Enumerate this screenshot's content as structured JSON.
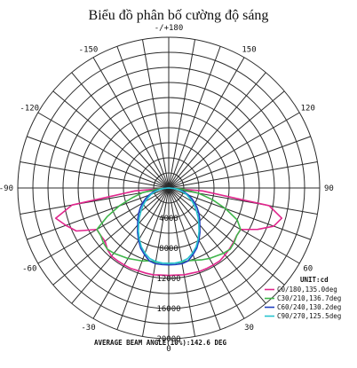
{
  "title": "Biểu đồ phân bố cường độ sáng",
  "chart_data": {
    "type": "polar",
    "title": "Biểu đồ phân bố cường độ sáng",
    "unit_label": "UNIT:cd",
    "radial_max": 20000,
    "radial_tick_labels": [
      {
        "label": "4000",
        "value": 4000
      },
      {
        "label": "8000",
        "value": 8000
      },
      {
        "label": "12000",
        "value": 12000
      },
      {
        "label": "16000",
        "value": 16000
      },
      {
        "label": "20000",
        "value": 20000
      }
    ],
    "angle_tick_labels": [
      {
        "label": "-/+180",
        "angle": 180
      },
      {
        "label": "-150",
        "angle": -150
      },
      {
        "label": "150",
        "angle": 150
      },
      {
        "label": "-120",
        "angle": -120
      },
      {
        "label": "120",
        "angle": 120
      },
      {
        "label": "-90",
        "angle": -90
      },
      {
        "label": "90",
        "angle": 90
      },
      {
        "label": "-60",
        "angle": -60
      },
      {
        "label": "60",
        "angle": 60
      },
      {
        "label": "-30",
        "angle": -30
      },
      {
        "label": "30",
        "angle": 30
      },
      {
        "label": "0",
        "angle": 0
      }
    ],
    "series": [
      {
        "name": "C0/180,135.0deg",
        "color": "#e0258c",
        "angles": [
          -90,
          -85,
          -80,
          -75,
          -70,
          -65,
          -60,
          -55,
          -50,
          -45,
          -40,
          -35,
          -30,
          -25,
          -20,
          -15,
          -10,
          -5,
          0,
          5,
          10,
          15,
          20,
          25,
          30,
          35,
          40,
          45,
          50,
          55,
          60,
          65,
          70,
          75,
          80,
          85,
          90
        ],
        "values": [
          0,
          4500,
          13000,
          15500,
          14500,
          13500,
          11000,
          11000,
          11000,
          11500,
          11800,
          11800,
          11800,
          11800,
          11700,
          11700,
          11700,
          11600,
          11600,
          11600,
          11700,
          11700,
          11800,
          11800,
          11800,
          11800,
          11600,
          11400,
          11200,
          11000,
          11000,
          13000,
          14800,
          15500,
          13500,
          4500,
          0
        ]
      },
      {
        "name": "C30/210,136.7deg",
        "color": "#3fb54a",
        "angles": [
          -90,
          -85,
          -80,
          -75,
          -70,
          -65,
          -60,
          -55,
          -50,
          -45,
          -40,
          -35,
          -30,
          -25,
          -20,
          -15,
          -10,
          -5,
          0,
          5,
          10,
          15,
          20,
          25,
          30,
          35,
          40,
          45,
          50,
          55,
          60,
          65,
          70,
          75,
          80,
          85,
          90
        ],
        "values": [
          0,
          1500,
          3500,
          5000,
          7000,
          9000,
          11000,
          11000,
          11300,
          11500,
          11300,
          11000,
          10800,
          10500,
          10300,
          10000,
          10000,
          10000,
          10000,
          10000,
          10000,
          10000,
          10200,
          10500,
          10800,
          11000,
          11300,
          11500,
          11300,
          11000,
          11000,
          10000,
          8000,
          6000,
          4000,
          1800,
          0
        ]
      },
      {
        "name": "C60/240,130.2deg",
        "color": "#1f3fbf",
        "angles": [
          -90,
          -85,
          -80,
          -75,
          -70,
          -65,
          -60,
          -55,
          -50,
          -45,
          -40,
          -35,
          -30,
          -25,
          -20,
          -15,
          -10,
          -5,
          0,
          5,
          10,
          15,
          20,
          25,
          30,
          35,
          40,
          45,
          50,
          55,
          60,
          65,
          70,
          75,
          80,
          85,
          90
        ],
        "values": [
          0,
          800,
          1500,
          2200,
          2800,
          3400,
          4000,
          4600,
          5200,
          5800,
          6400,
          7200,
          8000,
          8800,
          9400,
          10000,
          10200,
          10200,
          10200,
          10200,
          10200,
          10000,
          9400,
          8800,
          8000,
          7200,
          6400,
          5800,
          5200,
          4600,
          4000,
          3400,
          2800,
          2200,
          1500,
          800,
          0
        ]
      },
      {
        "name": "C90/270,125.5deg",
        "color": "#27c3cf",
        "angles": [
          -90,
          -85,
          -80,
          -75,
          -70,
          -65,
          -60,
          -55,
          -50,
          -45,
          -40,
          -35,
          -30,
          -25,
          -20,
          -15,
          -10,
          -5,
          0,
          5,
          10,
          15,
          20,
          25,
          30,
          35,
          40,
          45,
          50,
          55,
          60,
          65,
          70,
          75,
          80,
          85,
          90
        ],
        "values": [
          0,
          700,
          1300,
          1900,
          2500,
          3000,
          3600,
          4200,
          4800,
          5500,
          6200,
          7000,
          7800,
          8600,
          9200,
          9700,
          9900,
          10000,
          10000,
          10000,
          9900,
          9700,
          9200,
          8600,
          7800,
          7000,
          6200,
          5500,
          4800,
          4200,
          3600,
          3000,
          2500,
          1900,
          1300,
          700,
          0
        ]
      }
    ],
    "footer": "AVERAGE BEAM ANGLE(10%):142.6 DEG"
  }
}
